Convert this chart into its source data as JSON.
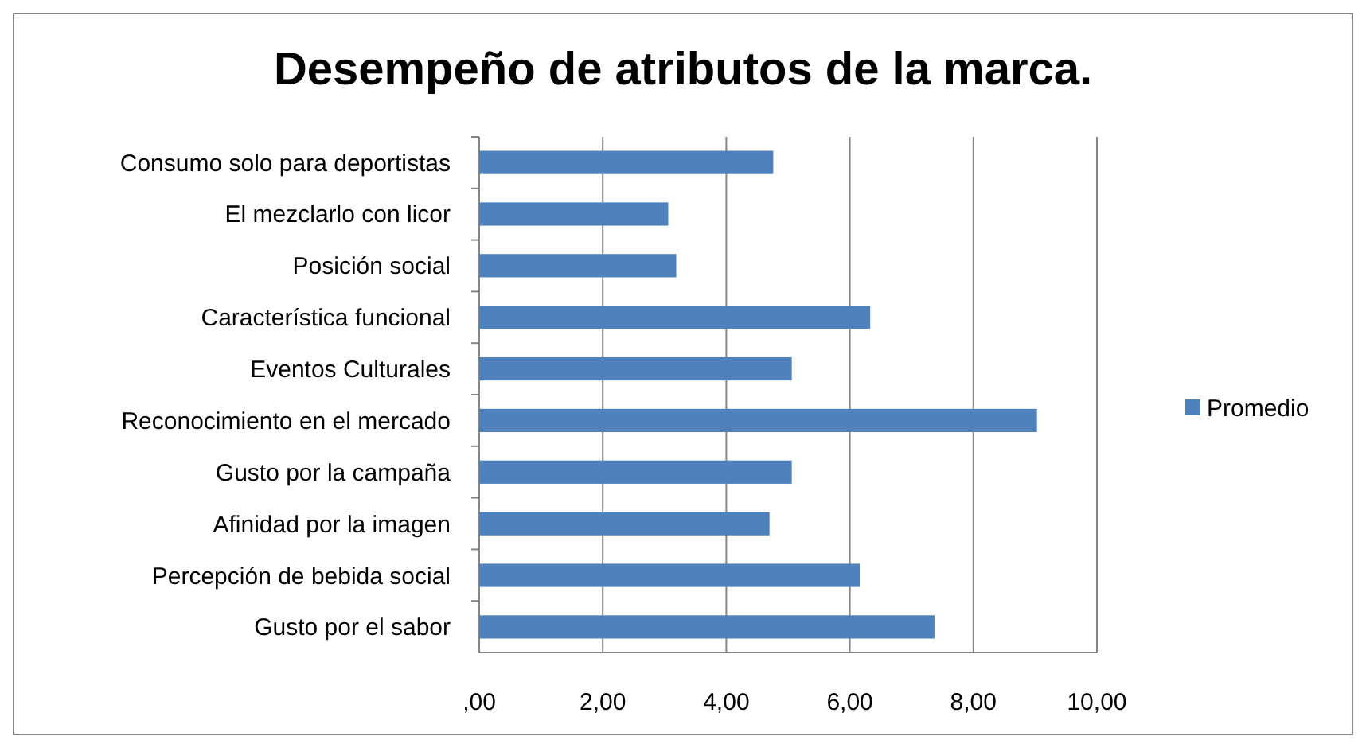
{
  "chart_data": {
    "type": "bar",
    "orientation": "horizontal",
    "title": "Desempeño de atributos de la marca.",
    "categories": [
      "Consumo solo para deportistas",
      "El mezclarlo con licor",
      "Posición social",
      "Característica funcional",
      "Eventos Culturales",
      "Reconocimiento en el mercado",
      "Gusto por la campaña",
      "Afinidad por la imagen",
      "Percepción de bebida social",
      "Gusto por el sabor"
    ],
    "series": [
      {
        "name": "Promedio",
        "color": "#4f81bd",
        "values": [
          4.76,
          3.06,
          3.19,
          6.33,
          5.06,
          9.03,
          5.06,
          4.7,
          6.16,
          7.37
        ]
      }
    ],
    "xlim": [
      0,
      10
    ],
    "xticks": [
      {
        "value": 0,
        "label": ",00"
      },
      {
        "value": 2,
        "label": "2,00"
      },
      {
        "value": 4,
        "label": "4,00"
      },
      {
        "value": 6,
        "label": "6,00"
      },
      {
        "value": 8,
        "label": "8,00"
      },
      {
        "value": 10,
        "label": "10,00"
      }
    ],
    "grid": "x",
    "legend": "right"
  }
}
